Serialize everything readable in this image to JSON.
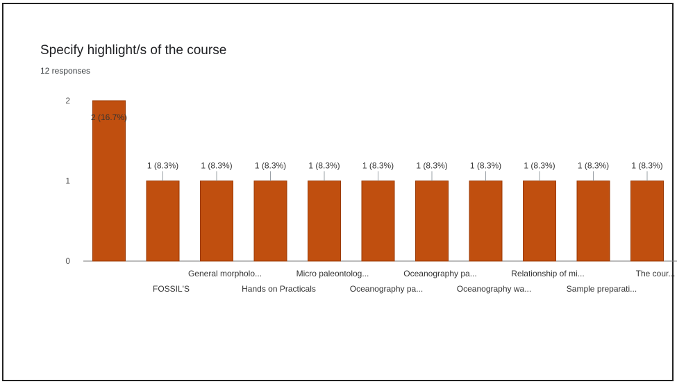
{
  "header": {
    "title": "Specify highlight/s of the course",
    "responses": "12 responses"
  },
  "colors": {
    "bar": "#c04f0f",
    "bar_edge": "#9a3a06",
    "axis": "#777777"
  },
  "chart_data": {
    "type": "bar",
    "title": "Specify highlight/s of the course",
    "xlabel": "",
    "ylabel": "",
    "ylim": [
      0,
      2
    ],
    "yticks": [
      "0",
      "1",
      "2"
    ],
    "categories": [
      "",
      "FOSSIL'S",
      "General morpholo...",
      "Hands on Practicals",
      "Micro paleontolog...",
      "Oceanography pa...",
      "Oceanography pa...",
      "Oceanography wa...",
      "Relationship of mi...",
      "Sample preparati...",
      "The cour..."
    ],
    "values": [
      2,
      1,
      1,
      1,
      1,
      1,
      1,
      1,
      1,
      1,
      1
    ],
    "labels": [
      "2 (16.7%)",
      "1 (8.3%)",
      "1 (8.3%)",
      "1 (8.3%)",
      "1 (8.3%)",
      "1 (8.3%)",
      "1 (8.3%)",
      "1 (8.3%)",
      "1 (8.3%)",
      "1 (8.3%)",
      "1 (8.3%)"
    ],
    "grid": false,
    "legend": "none"
  }
}
